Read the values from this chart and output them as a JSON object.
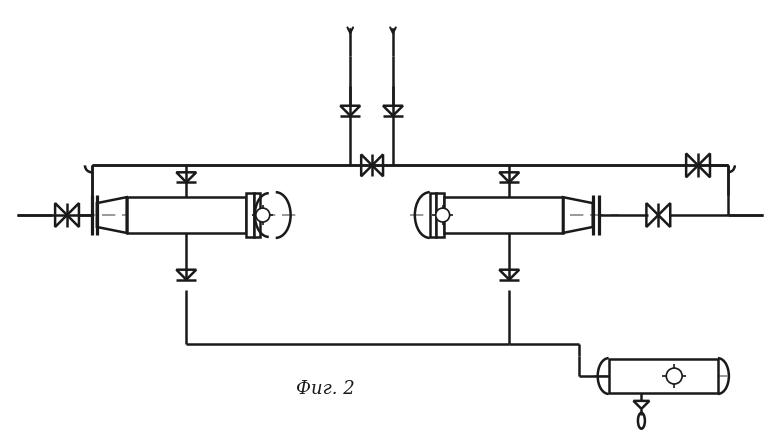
{
  "bg_color": "#ffffff",
  "line_color": "#1a1a1a",
  "dash_color": "#888888",
  "title": "Фиг. 2",
  "title_fontsize": 13
}
